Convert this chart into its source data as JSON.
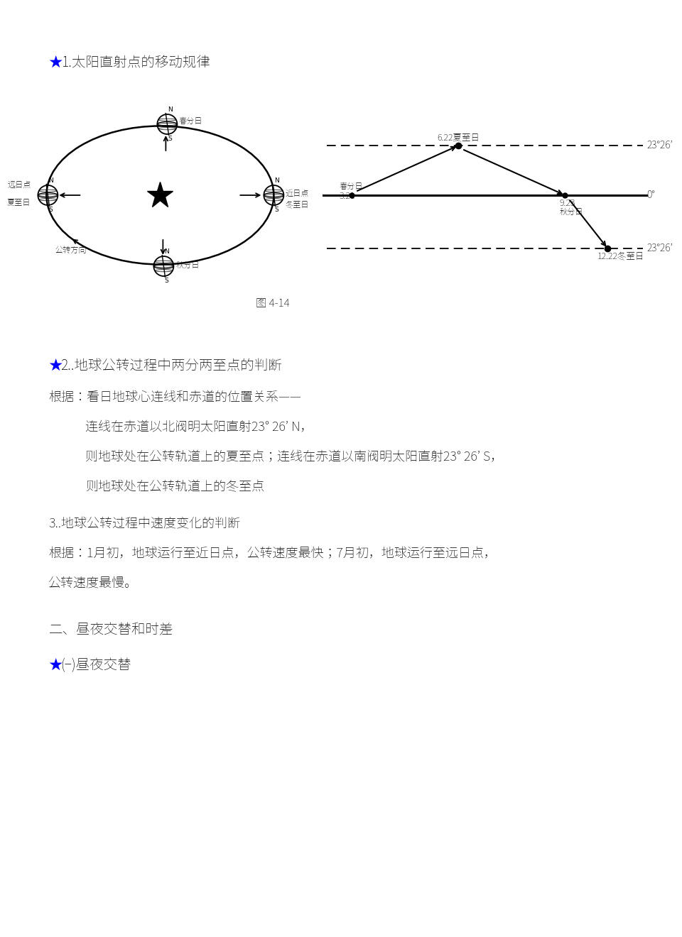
{
  "bg_color": "#ffffff",
  "title1_star": "★",
  "title1_text": "1.太阳直射点的移动规律",
  "fig_caption": "图 4-14",
  "label_chunfen": "春分日",
  "label_xiazhi": "6.22夏至日",
  "label_qiufen": "秋分日",
  "label_dongzhi_full": "12.22冬至日",
  "label_321": "3.21",
  "label_923": "9.23",
  "label_chunfen_left": "春分日",
  "label_23n": "23°26’",
  "label_0deg": "0°",
  "label_23s": "23°26’",
  "label_jindian": "近日点",
  "label_yuandian": "远日点",
  "label_xiazhi2": "夏至日",
  "label_dongzhi2": "冬至日",
  "label_gongzhuan": "公转方向",
  "label_qiufen2": "秋分日",
  "title2_star": "★",
  "title2_text": "2..地球公转过程中两分两至点的判断",
  "basis_text": "根据：看日地球心连线和赤道的位置关系——",
  "body_line1": "连线在赤道以北阀明太阳直射23° 26’ N，",
  "body_line2": "则地球处在公转轨道上的夏至点；连线在赤道以南阀明太阳直射23° 26’ S，",
  "body_line3": "则地球处在公转轨道上的冬至点",
  "title3_text": "3..地球公转过程中速度变化的判断",
  "basis2_text": "根据：1月初，地球运行至近日点，公转速度最快；7月初，地球运行至远日点，",
  "basis2_cont": "公转速度最慢。",
  "section2_title": "二、昼夜交替和时差",
  "section2_sub_star": "★",
  "section2_sub": "(−)昼夜交替"
}
